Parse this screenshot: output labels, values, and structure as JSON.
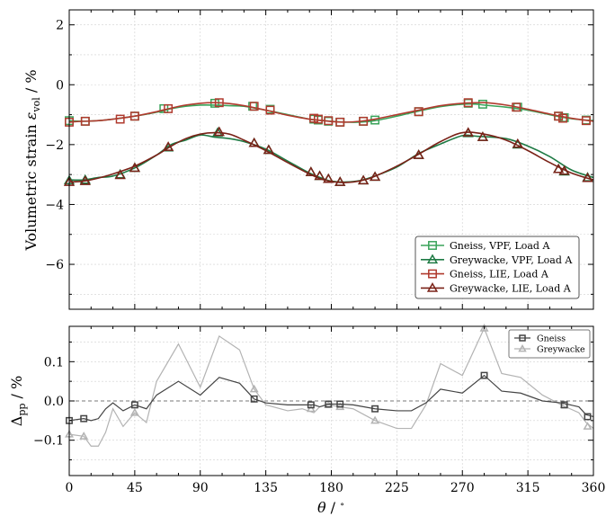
{
  "chart_data": [
    {
      "type": "line",
      "title": "",
      "xlabel": "",
      "ylabel_main": "Volumetric strain ",
      "ylabel_symbol": "ε",
      "ylabel_sub": "vol",
      "ylabel_unit": " / %",
      "xlim": [
        0,
        360
      ],
      "ylim": [
        -7.5,
        2.5
      ],
      "yticks": [
        2,
        0,
        -2,
        -4,
        -6
      ],
      "yticklabels": [
        "2",
        "0",
        "−2",
        "−4",
        "−6"
      ],
      "grid": true,
      "legend_position": "lower-right",
      "series": [
        {
          "name": "Gneiss, VPF, Load A",
          "color": "#3aa35a",
          "marker": "square",
          "x": [
            0,
            10,
            20,
            30,
            45,
            60,
            70,
            80,
            90,
            100,
            110,
            120,
            135,
            150,
            165,
            170,
            180,
            190,
            200,
            210,
            225,
            240,
            255,
            270,
            280,
            285,
            300,
            315,
            330,
            340,
            350,
            360
          ],
          "y": [
            -1.2,
            -1.22,
            -1.2,
            -1.15,
            -1.05,
            -0.92,
            -0.8,
            -0.72,
            -0.68,
            -0.68,
            -0.7,
            -0.72,
            -0.85,
            -1.0,
            -1.15,
            -1.18,
            -1.22,
            -1.25,
            -1.25,
            -1.2,
            -1.05,
            -0.88,
            -0.73,
            -0.65,
            -0.65,
            -0.68,
            -0.75,
            -0.85,
            -1.0,
            -1.1,
            -1.16,
            -1.2
          ],
          "marker_x": [
            0,
            11,
            45,
            65,
            100,
            126,
            138,
            168,
            171,
            178,
            186,
            202,
            210,
            240,
            274,
            284,
            308,
            336,
            340,
            355
          ],
          "marker_y": [
            -1.2,
            -1.22,
            -1.05,
            -0.8,
            -0.62,
            -0.72,
            -0.82,
            -1.15,
            -1.18,
            -1.22,
            -1.25,
            -1.22,
            -1.18,
            -0.9,
            -0.62,
            -0.65,
            -0.75,
            -1.05,
            -1.1,
            -1.18
          ]
        },
        {
          "name": "Greywacke, VPF, Load A",
          "color": "#1e7a44",
          "marker": "triangle",
          "x": [
            0,
            10,
            20,
            30,
            45,
            60,
            70,
            80,
            90,
            100,
            110,
            120,
            135,
            150,
            165,
            175,
            180,
            190,
            200,
            210,
            225,
            240,
            255,
            270,
            280,
            300,
            315,
            330,
            345,
            360
          ],
          "y": [
            -3.18,
            -3.18,
            -3.1,
            -3.05,
            -2.78,
            -2.35,
            -2.0,
            -1.85,
            -1.68,
            -1.75,
            -1.8,
            -1.9,
            -2.15,
            -2.55,
            -2.95,
            -3.15,
            -3.22,
            -3.25,
            -3.2,
            -3.05,
            -2.75,
            -2.3,
            -1.98,
            -1.7,
            -1.72,
            -1.8,
            -2.05,
            -2.4,
            -2.85,
            -3.1
          ],
          "marker_x": [
            0,
            11,
            35,
            45,
            68,
            102,
            127,
            137,
            166,
            172,
            178,
            186,
            202,
            210,
            240,
            274,
            284,
            308,
            336,
            340,
            356
          ],
          "marker_y": [
            -3.2,
            -3.18,
            -3.0,
            -2.78,
            -2.1,
            -1.6,
            -1.95,
            -2.18,
            -2.92,
            -3.05,
            -3.15,
            -3.25,
            -3.2,
            -3.08,
            -2.35,
            -1.62,
            -1.75,
            -2.0,
            -2.82,
            -2.9,
            -3.1
          ]
        },
        {
          "name": "Gneiss, LIE, Load A",
          "color": "#b03a2e",
          "marker": "square",
          "x": [
            0,
            10,
            20,
            30,
            45,
            60,
            70,
            80,
            90,
            100,
            110,
            120,
            135,
            150,
            165,
            175,
            180,
            190,
            200,
            210,
            225,
            240,
            255,
            270,
            285,
            300,
            315,
            330,
            345,
            360
          ],
          "y": [
            -1.25,
            -1.22,
            -1.2,
            -1.15,
            -1.05,
            -0.9,
            -0.78,
            -0.68,
            -0.62,
            -0.6,
            -0.63,
            -0.7,
            -0.85,
            -1.02,
            -1.15,
            -1.2,
            -1.23,
            -1.25,
            -1.22,
            -1.15,
            -1.0,
            -0.85,
            -0.7,
            -0.62,
            -0.6,
            -0.68,
            -0.82,
            -0.98,
            -1.12,
            -1.22
          ],
          "marker_x": [
            0,
            11,
            35,
            45,
            68,
            103,
            127,
            138,
            168,
            171,
            178,
            186,
            202,
            240,
            274,
            307,
            336,
            339,
            355
          ],
          "marker_y": [
            -1.25,
            -1.22,
            -1.15,
            -1.05,
            -0.8,
            -0.6,
            -0.72,
            -0.85,
            -1.12,
            -1.15,
            -1.2,
            -1.25,
            -1.22,
            -0.9,
            -0.6,
            -0.75,
            -1.05,
            -1.12,
            -1.2
          ]
        },
        {
          "name": "Greywacke, LIE, Load A",
          "color": "#7a2218",
          "marker": "triangle",
          "x": [
            0,
            10,
            20,
            30,
            45,
            60,
            70,
            80,
            90,
            100,
            110,
            120,
            135,
            150,
            165,
            175,
            185,
            195,
            205,
            215,
            225,
            240,
            255,
            270,
            285,
            300,
            315,
            330,
            345,
            360
          ],
          "y": [
            -3.25,
            -3.22,
            -3.12,
            -2.98,
            -2.72,
            -2.35,
            -2.05,
            -1.8,
            -1.65,
            -1.6,
            -1.65,
            -1.85,
            -2.2,
            -2.6,
            -2.98,
            -3.18,
            -3.26,
            -3.25,
            -3.15,
            -2.95,
            -2.72,
            -2.32,
            -1.9,
            -1.6,
            -1.65,
            -1.85,
            -2.2,
            -2.6,
            -2.95,
            -3.18
          ],
          "marker_x": [
            0,
            11,
            35,
            45,
            68,
            103,
            127,
            137,
            166,
            172,
            178,
            186,
            202,
            210,
            240,
            274,
            284,
            308,
            336,
            340,
            356
          ],
          "marker_y": [
            -3.25,
            -3.22,
            -3.02,
            -2.78,
            -2.08,
            -1.58,
            -1.95,
            -2.18,
            -2.92,
            -3.05,
            -3.15,
            -3.25,
            -3.2,
            -3.08,
            -2.35,
            -1.6,
            -1.75,
            -1.98,
            -2.82,
            -2.88,
            -3.12
          ]
        }
      ]
    },
    {
      "type": "line",
      "title": "",
      "xlabel_symbol": "θ",
      "xlabel_unit": " / ",
      "xlabel_degree": "∘",
      "ylabel_symbol": "Δ",
      "ylabel_sub": "pp",
      "ylabel_unit": " / %",
      "xlim": [
        0,
        360
      ],
      "ylim": [
        -0.19,
        0.19
      ],
      "xticks": [
        0,
        45,
        90,
        135,
        180,
        225,
        270,
        315,
        360
      ],
      "xticklabels": [
        "0",
        "45",
        "90",
        "135",
        "180",
        "225",
        "270",
        "315",
        "360"
      ],
      "yticks": [
        0.1,
        0.0,
        -0.1
      ],
      "yticklabels": [
        "0.1",
        "0.0",
        "−0.1"
      ],
      "reference_line_y": 0,
      "grid": true,
      "legend_position": "top-right",
      "series": [
        {
          "name": "Gneiss",
          "color": "#444444",
          "marker": "square",
          "x": [
            0,
            10,
            15,
            20,
            25,
            30,
            37,
            45,
            53,
            60,
            75,
            90,
            103,
            117,
            127,
            135,
            150,
            160,
            168,
            172,
            178,
            186,
            195,
            210,
            225,
            235,
            245,
            255,
            270,
            285,
            297,
            310,
            325,
            338,
            350,
            355,
            360
          ],
          "y": [
            -0.05,
            -0.045,
            -0.05,
            -0.045,
            -0.02,
            -0.005,
            -0.025,
            -0.01,
            -0.02,
            0.015,
            0.05,
            0.015,
            0.06,
            0.045,
            0.005,
            -0.005,
            -0.01,
            -0.01,
            -0.01,
            -0.015,
            -0.008,
            -0.008,
            -0.01,
            -0.02,
            -0.025,
            -0.025,
            -0.005,
            0.03,
            0.02,
            0.065,
            0.025,
            0.02,
            0.0,
            -0.005,
            -0.015,
            -0.035,
            -0.04
          ],
          "marker_x": [
            0,
            10,
            45,
            127,
            166,
            178,
            186,
            210,
            285,
            340,
            356
          ],
          "marker_y": [
            -0.05,
            -0.045,
            -0.01,
            0.005,
            -0.01,
            -0.008,
            -0.008,
            -0.02,
            0.065,
            -0.01,
            -0.04
          ]
        },
        {
          "name": "Greywacke",
          "color": "#b3b3b3",
          "marker": "triangle",
          "x": [
            0,
            10,
            15,
            20,
            25,
            30,
            37,
            45,
            53,
            60,
            75,
            90,
            103,
            117,
            127,
            135,
            150,
            160,
            168,
            172,
            178,
            186,
            195,
            210,
            225,
            235,
            245,
            255,
            270,
            285,
            297,
            310,
            325,
            338,
            350,
            355,
            360
          ],
          "y": [
            -0.085,
            -0.09,
            -0.115,
            -0.115,
            -0.08,
            -0.02,
            -0.065,
            -0.03,
            -0.055,
            0.05,
            0.145,
            0.035,
            0.165,
            0.13,
            0.03,
            -0.01,
            -0.025,
            -0.02,
            -0.03,
            -0.015,
            -0.01,
            -0.015,
            -0.02,
            -0.05,
            -0.07,
            -0.07,
            -0.01,
            0.095,
            0.065,
            0.185,
            0.07,
            0.06,
            0.015,
            -0.01,
            -0.03,
            -0.055,
            -0.07
          ],
          "marker_x": [
            0,
            10,
            45,
            127,
            166,
            178,
            186,
            210,
            285,
            340,
            356
          ],
          "marker_y": [
            -0.085,
            -0.09,
            -0.03,
            0.03,
            -0.02,
            -0.01,
            -0.015,
            -0.05,
            0.185,
            -0.01,
            -0.065
          ]
        }
      ]
    }
  ]
}
